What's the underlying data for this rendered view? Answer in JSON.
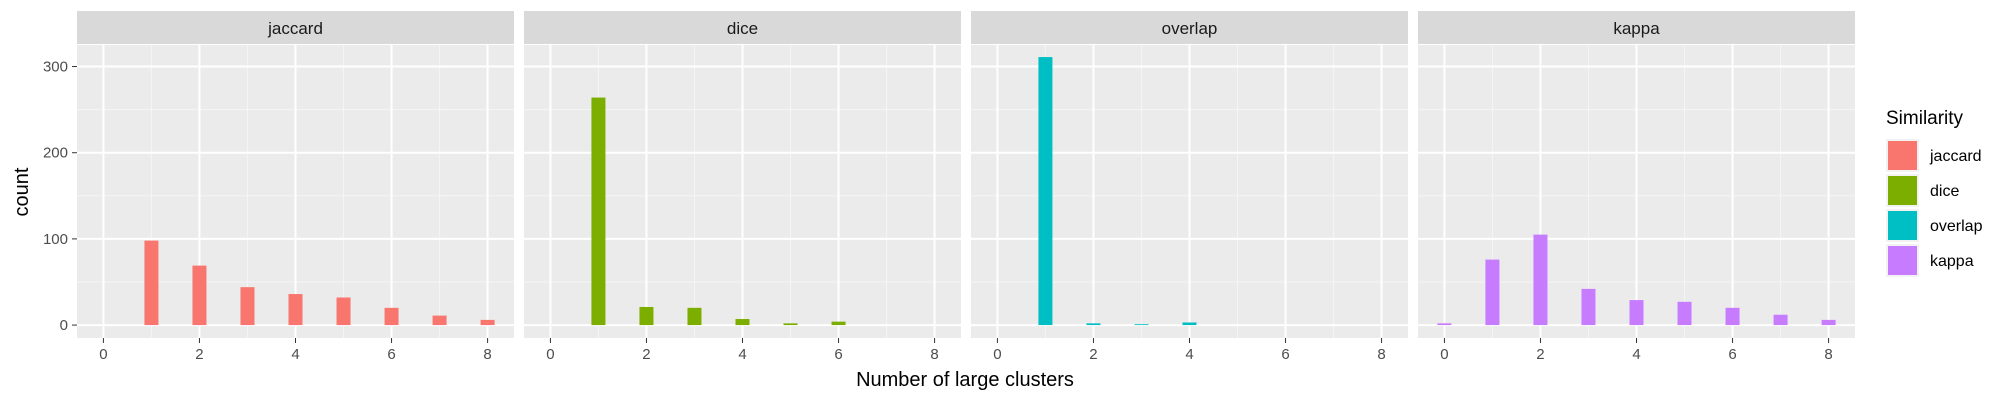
{
  "chart_data": {
    "type": "bar",
    "xlabel": "Number of large clusters",
    "ylabel": "count",
    "xlim": [
      -0.55,
      8.55
    ],
    "ylim": [
      -15,
      325
    ],
    "x_ticks": [
      0,
      2,
      4,
      6,
      8
    ],
    "y_ticks": [
      0,
      100,
      200,
      300
    ],
    "grid": true,
    "legend": {
      "title": "Similarity",
      "position": "right",
      "entries": [
        "jaccard",
        "dice",
        "overlap",
        "kappa"
      ]
    },
    "panels": [
      {
        "name": "jaccard",
        "color": "#F8766D",
        "x": [
          1,
          2,
          3,
          4,
          5,
          6,
          7,
          8
        ],
        "values": [
          98,
          69,
          44,
          36,
          32,
          20,
          11,
          6
        ]
      },
      {
        "name": "dice",
        "color": "#7CAE00",
        "x": [
          1,
          2,
          3,
          4,
          5,
          6
        ],
        "values": [
          264,
          21,
          20,
          7,
          2,
          4
        ]
      },
      {
        "name": "overlap",
        "color": "#00BFC4",
        "x": [
          1,
          2,
          3,
          4
        ],
        "values": [
          311,
          2,
          1,
          3
        ]
      },
      {
        "name": "kappa",
        "color": "#C77CFF",
        "x": [
          0,
          1,
          2,
          3,
          4,
          5,
          6,
          7,
          8
        ],
        "values": [
          2,
          76,
          105,
          42,
          29,
          27,
          20,
          12,
          6
        ]
      }
    ]
  }
}
